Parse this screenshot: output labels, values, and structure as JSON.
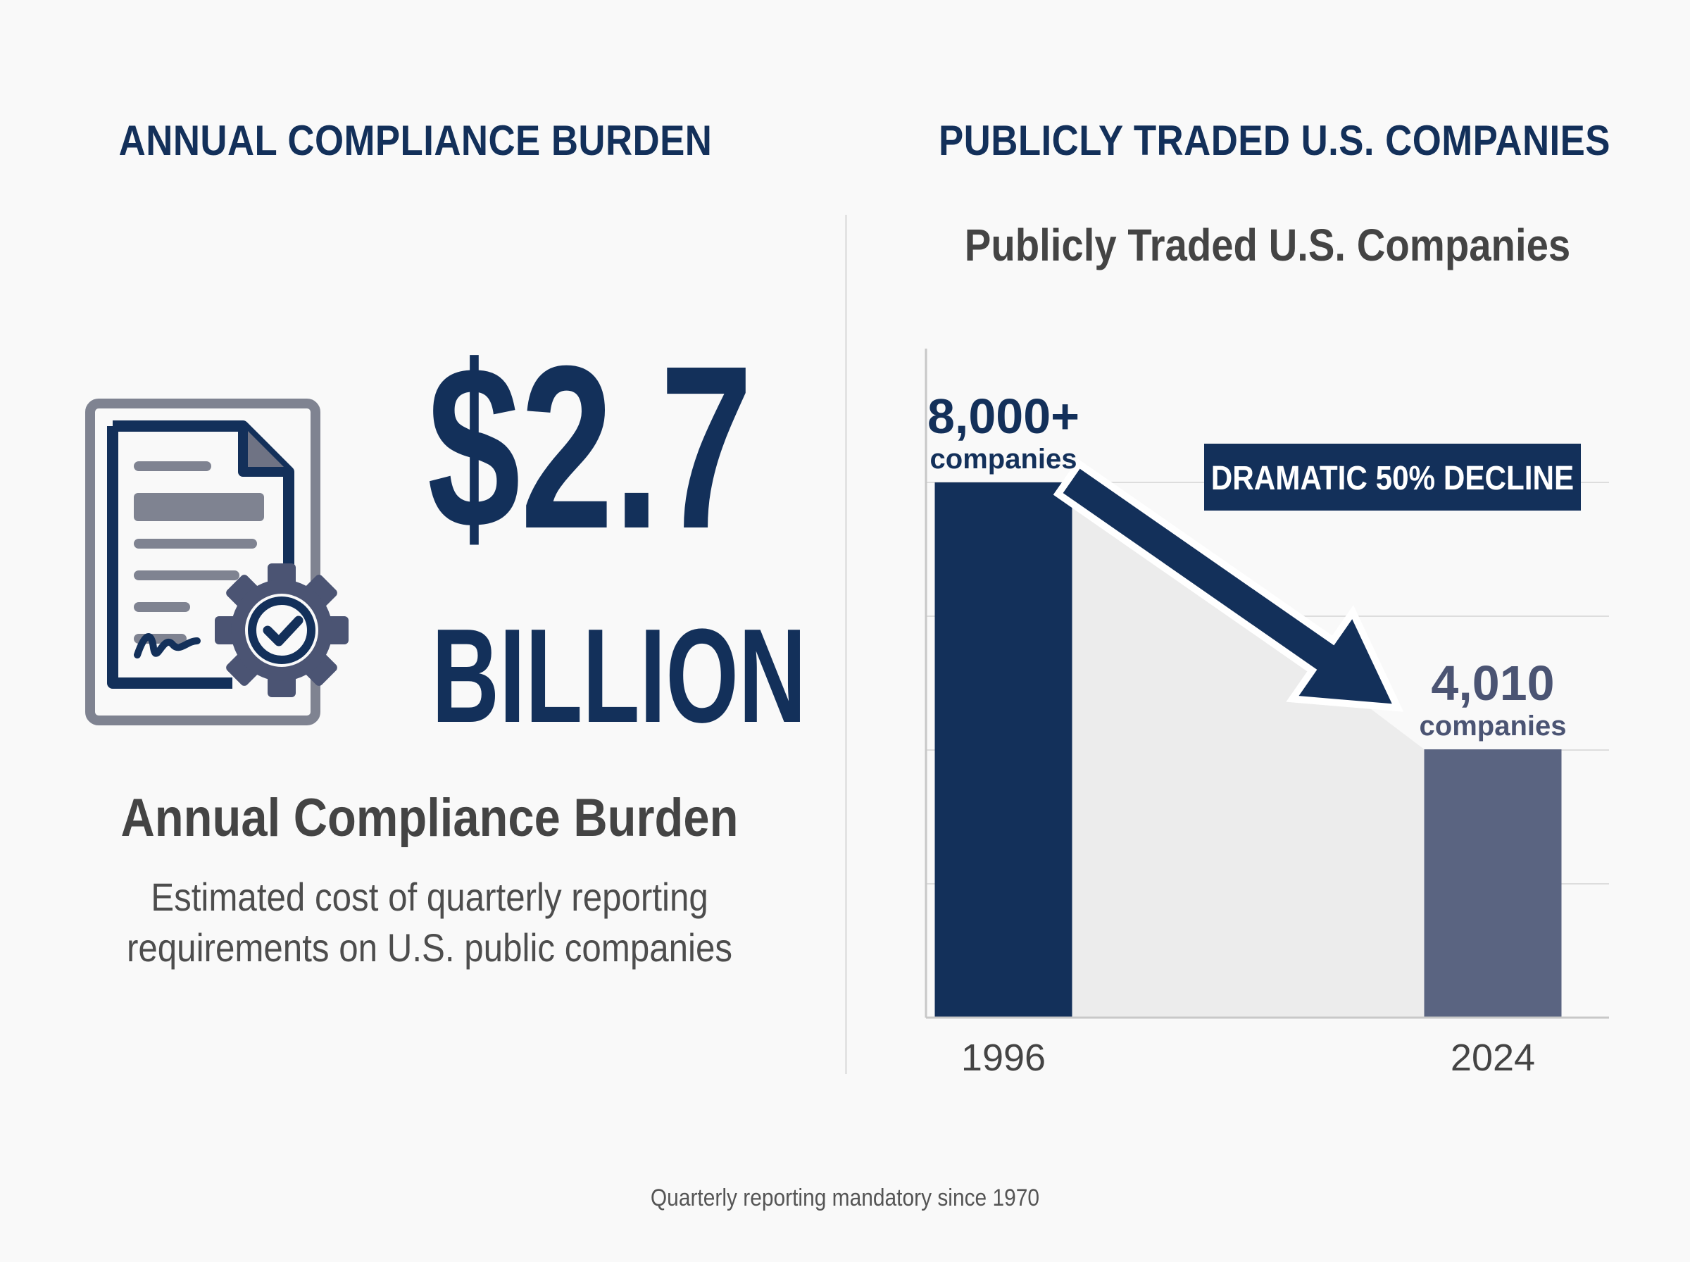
{
  "left_panel": {
    "heading": "ANNUAL COMPLIANCE BURDEN",
    "amount": "$2.7",
    "unit": "BILLION",
    "title": "Annual Compliance Burden",
    "description_line1": "Estimated cost of quarterly reporting",
    "description_line2": "requirements on U.S. public companies",
    "icon": "document-gear-check-icon"
  },
  "right_panel": {
    "heading": "PUBLICLY TRADED U.S. COMPANIES"
  },
  "footer": "Quarterly reporting mandatory since 1970",
  "colors": {
    "navy": "#13305a",
    "slate": "#5a6481",
    "gray_text": "#444444",
    "fill_area": "#ededed",
    "background": "#f9f9f9"
  },
  "chart_data": {
    "type": "bar",
    "title": "Publicly Traded U.S. Companies",
    "categories": [
      "1996",
      "2024"
    ],
    "values": [
      8000,
      4010
    ],
    "value_labels": [
      "8,000+",
      "4,010"
    ],
    "value_sublabel": "companies",
    "annotation": "DRAMATIC 50% DECLINE",
    "bar_colors": [
      "#13305a",
      "#5a6481"
    ],
    "ylim": [
      0,
      10000
    ],
    "grid": true,
    "xlabel": "",
    "ylabel": ""
  }
}
